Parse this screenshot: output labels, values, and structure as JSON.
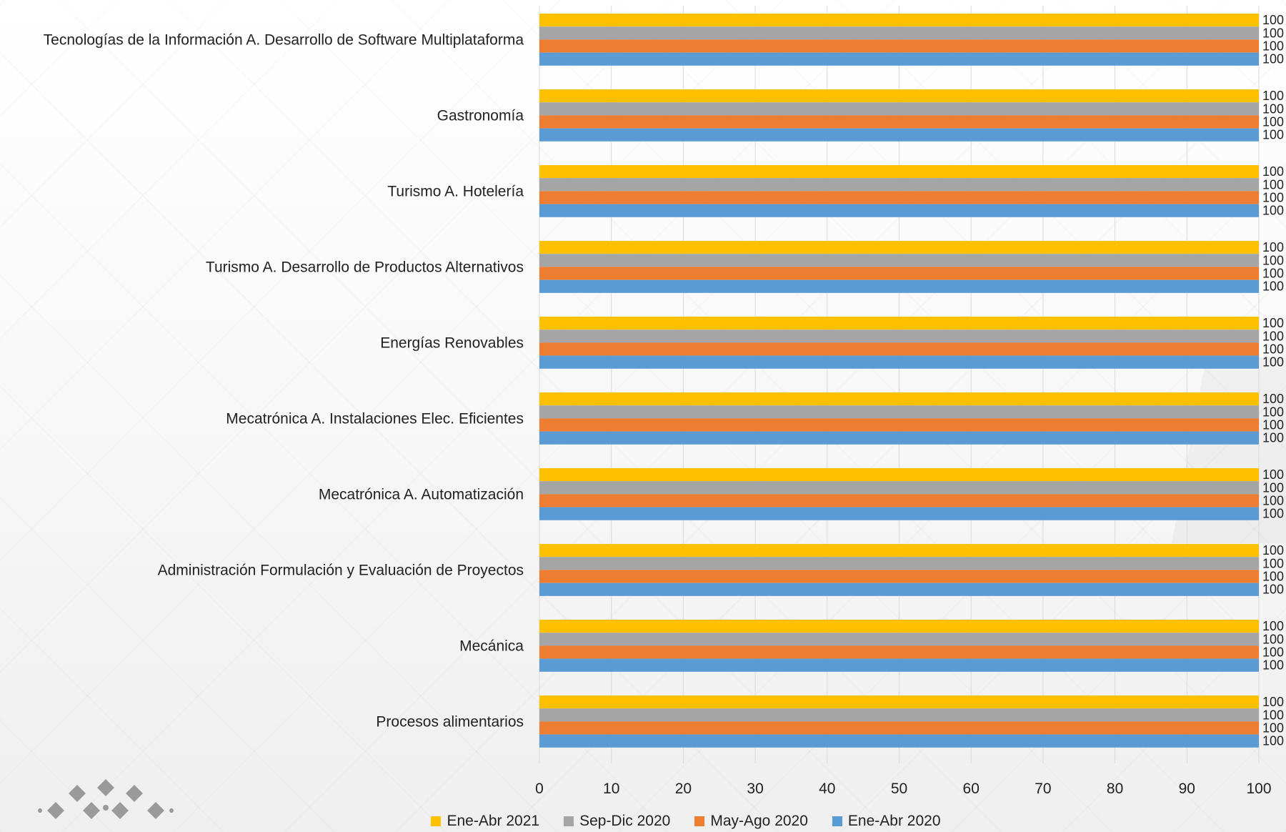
{
  "chart_data": {
    "type": "bar",
    "orientation": "horizontal",
    "categories": [
      "Tecnologías de la Información A. Desarrollo de Software Multiplataforma",
      "Gastronomía",
      "Turismo A. Hotelería",
      "Turismo A. Desarrollo de Productos Alternativos",
      "Energías Renovables",
      "Mecatrónica A. Instalaciones Elec. Eficientes",
      "Mecatrónica A. Automatización",
      "Administración Formulación y Evaluación de Proyectos",
      "Mecánica",
      "Procesos alimentarios"
    ],
    "series": [
      {
        "name": "Ene-Abr 2021",
        "color": "#FFC000",
        "values": [
          100,
          100,
          100,
          100,
          100,
          100,
          100,
          100,
          100,
          100
        ]
      },
      {
        "name": "Sep-Dic 2020",
        "color": "#A5A5A5",
        "values": [
          100,
          100,
          100,
          100,
          100,
          100,
          100,
          100,
          100,
          100
        ]
      },
      {
        "name": "May-Ago 2020",
        "color": "#ED7D31",
        "values": [
          100,
          100,
          100,
          100,
          100,
          100,
          100,
          100,
          100,
          100
        ]
      },
      {
        "name": "Ene-Abr 2020",
        "color": "#5B9BD5",
        "values": [
          100,
          100,
          100,
          100,
          100,
          100,
          100,
          100,
          100,
          100
        ]
      }
    ],
    "xlim": [
      0,
      100
    ],
    "xticks": [
      0,
      10,
      20,
      30,
      40,
      50,
      60,
      70,
      80,
      90,
      100
    ],
    "data_labels": true,
    "grid": true,
    "legend_position": "bottom",
    "title": "",
    "xlabel": "",
    "ylabel": ""
  },
  "logo": {
    "icon": "flower-pattern-logo-icon"
  }
}
